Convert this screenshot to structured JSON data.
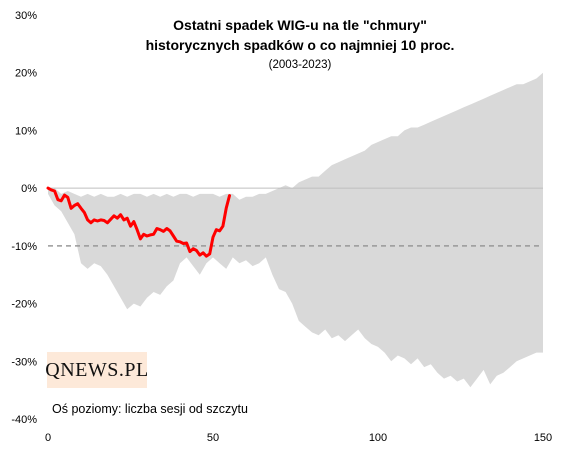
{
  "title_line1": "Ostatni spadek WIG-u na tle \"chmury\"",
  "title_line2": "historycznych spadków o co najmniej 10 proc.",
  "subtitle": "(2003-2023)",
  "logo_text": "QNEWS.PL",
  "note": "Oś poziomy: liczba sesji od szczytu",
  "colors": {
    "cloud": "#d9d9d9",
    "series": "#ff0000",
    "threshold": "#999999",
    "zero_line": "#bfbfbf",
    "logo_bg": "#fde9d9"
  },
  "chart_data": {
    "type": "area",
    "title": "Ostatni spadek WIG-u na tle \"chmury\" historycznych spadków o co najmniej 10 proc.",
    "subtitle": "(2003-2023)",
    "xlabel": "Oś poziomy: liczba sesji od szczytu",
    "ylabel": "",
    "xlim": [
      0,
      150
    ],
    "ylim": [
      -40,
      30
    ],
    "x_ticks": [
      "0",
      "50",
      "100",
      "150"
    ],
    "y_ticks": [
      "30%",
      "20%",
      "10%",
      "0%",
      "-10%",
      "-20%",
      "-30%",
      "-40%"
    ],
    "threshold_line": -10,
    "cloud": {
      "x": [
        0,
        2,
        4,
        6,
        8,
        10,
        12,
        14,
        16,
        18,
        20,
        22,
        24,
        26,
        28,
        30,
        32,
        34,
        36,
        38,
        40,
        42,
        44,
        46,
        48,
        50,
        52,
        54,
        56,
        58,
        60,
        62,
        64,
        66,
        68,
        70,
        72,
        74,
        76,
        78,
        80,
        82,
        84,
        86,
        88,
        90,
        92,
        94,
        96,
        98,
        100,
        102,
        104,
        106,
        108,
        110,
        112,
        114,
        116,
        118,
        120,
        122,
        124,
        126,
        128,
        130,
        132,
        134,
        136,
        138,
        140,
        142,
        144,
        146,
        148,
        150
      ],
      "upper": [
        0,
        0,
        -1,
        -0.5,
        -1,
        -1.5,
        -1,
        -1.5,
        -1,
        -1.5,
        -1.5,
        -1,
        -1.5,
        -1,
        -1,
        -1.5,
        -1,
        -1.5,
        -1,
        -1.5,
        -1,
        -1,
        -1.5,
        -1,
        -1,
        -1,
        -1.5,
        -1,
        -1,
        -2,
        -1.5,
        -1.5,
        -1,
        -1,
        -0.5,
        0,
        0.5,
        0,
        1,
        1.5,
        2,
        2,
        3,
        4,
        4.5,
        5,
        5.5,
        6,
        6.5,
        7.5,
        8,
        8.5,
        9,
        9,
        10,
        10.5,
        10.5,
        11,
        11.5,
        12,
        12.5,
        13,
        13.5,
        14,
        14.5,
        15,
        15.5,
        16,
        16.5,
        17,
        17.5,
        18,
        18,
        18.5,
        19,
        20
      ],
      "lower": [
        -1,
        -3,
        -4,
        -6,
        -8,
        -13,
        -14,
        -13,
        -13.5,
        -15,
        -17,
        -19,
        -21,
        -20,
        -20.5,
        -19,
        -18,
        -18.5,
        -17,
        -16,
        -13,
        -12,
        -13.5,
        -15,
        -13,
        -12,
        -13,
        -14,
        -12,
        -13,
        -12.5,
        -13.5,
        -13,
        -12,
        -15,
        -17.5,
        -18,
        -20,
        -23,
        -24,
        -25,
        -25.5,
        -24.5,
        -26,
        -25.5,
        -26.5,
        -25.5,
        -24.5,
        -26,
        -27,
        -27.5,
        -28.5,
        -30,
        -29,
        -29.5,
        -30.5,
        -29.5,
        -31,
        -30.5,
        -32,
        -33,
        -32.5,
        -33.5,
        -33,
        -34.5,
        -33,
        -31.5,
        -34,
        -32.5,
        -32,
        -31,
        -30,
        -29.5,
        -29,
        -28.5,
        -28.5
      ]
    },
    "series": [
      {
        "x": [
          0,
          1,
          2,
          3,
          4,
          5,
          6,
          7,
          8,
          9,
          10,
          11,
          12,
          13,
          14,
          15,
          16,
          17,
          18,
          19,
          20,
          21,
          22,
          23,
          24,
          25,
          26,
          27,
          28,
          29,
          30,
          31,
          32,
          33,
          34,
          35,
          36,
          37,
          38,
          39,
          40,
          41,
          42,
          43,
          44,
          45,
          46,
          47,
          48,
          49,
          50,
          51,
          52,
          53,
          54,
          55
        ],
        "values": [
          0,
          -0.3,
          -0.5,
          -2,
          -2.2,
          -1.2,
          -1.6,
          -3.5,
          -3,
          -2.7,
          -3.5,
          -4.2,
          -5.5,
          -6,
          -5.5,
          -5.7,
          -5.5,
          -5.6,
          -6,
          -5.4,
          -4.8,
          -5.2,
          -4.6,
          -5.5,
          -5.2,
          -6.6,
          -5.8,
          -7.2,
          -8.8,
          -8,
          -8.3,
          -8.1,
          -8,
          -7,
          -7.2,
          -7.5,
          -7,
          -7.4,
          -8.3,
          -9.2,
          -9.3,
          -9.6,
          -9.5,
          -11,
          -10.5,
          -10.8,
          -11.6,
          -11.2,
          -11.8,
          -11.4,
          -8.5,
          -7.2,
          -7.4,
          -6.6,
          -3.5,
          -1.3
        ]
      }
    ]
  }
}
